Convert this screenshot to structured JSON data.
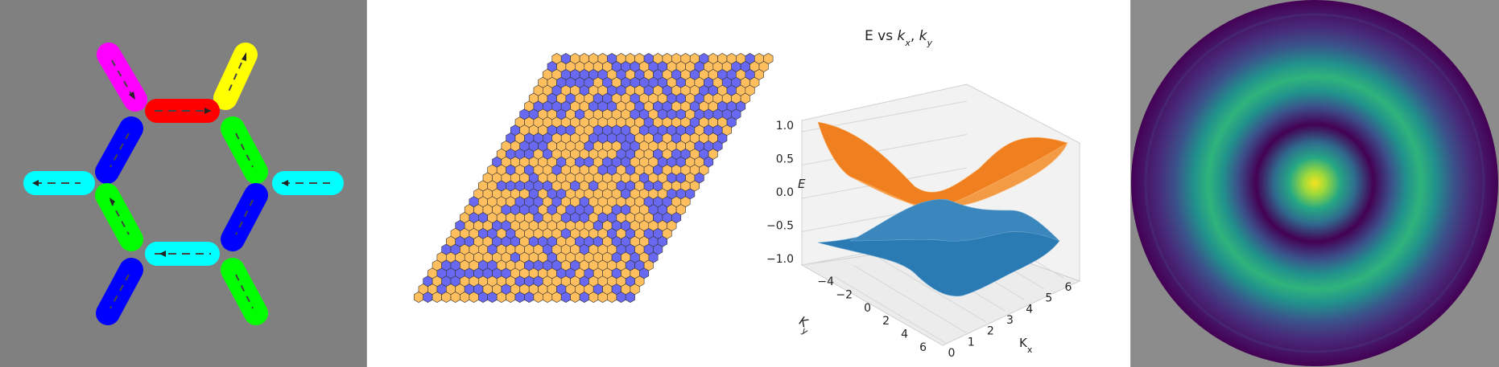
{
  "left_panel": {
    "background": "#808080",
    "bond_colors": {
      "magenta": "#ff00ff",
      "yellow": "#ffff00",
      "red": "#ff0000",
      "blue": "#0000ff",
      "green": "#00ff00",
      "cyan": "#00ffff"
    }
  },
  "middle_panel": {
    "lattice_colors": [
      "#ffbf5f",
      "#6868f0"
    ],
    "chart_data": {
      "type": "surface",
      "title_prefix": "E vs ",
      "title_x": "k",
      "title_x_sub": "x",
      "title_sep": ", ",
      "title_y": "k",
      "title_y_sub": "y",
      "xlabel": "K",
      "xlabel_sub": "x",
      "ylabel": "K",
      "ylabel_sub": "y",
      "zlabel": "E",
      "xlim": [
        0,
        6.28
      ],
      "ylim": [
        -4,
        6.28
      ],
      "zlim": [
        -1,
        1
      ],
      "x_ticks": [
        "0",
        "1",
        "2",
        "3",
        "4",
        "5",
        "6"
      ],
      "y_ticks": [
        "−4",
        "−2",
        "0",
        "2",
        "4",
        "6"
      ],
      "z_ticks": [
        "−1.0",
        "−0.5",
        "0.0",
        "0.5",
        "1.0"
      ],
      "series": [
        {
          "band": "upper",
          "color": "#f07f1f"
        },
        {
          "band": "lower",
          "color": "#2a7ab4"
        }
      ]
    }
  },
  "right_panel": {
    "background": "#8c8c8c",
    "colormap": "viridis"
  }
}
